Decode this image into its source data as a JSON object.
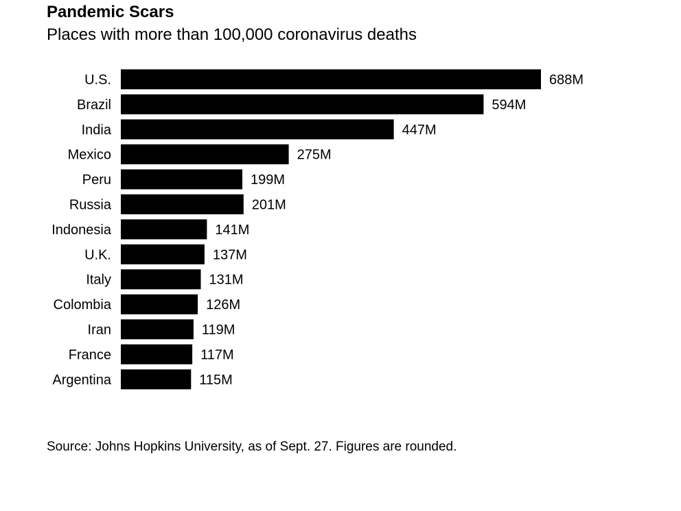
{
  "chart_data": {
    "type": "bar",
    "orientation": "horizontal",
    "title": "Pandemic Scars",
    "subtitle": "Places with more than 100,000 coronavirus deaths",
    "categories": [
      "U.S.",
      "Brazil",
      "India",
      "Mexico",
      "Peru",
      "Russia",
      "Indonesia",
      "U.K.",
      "Italy",
      "Colombia",
      "Iran",
      "France",
      "Argentina"
    ],
    "values": [
      688,
      594,
      447,
      275,
      199,
      201,
      141,
      137,
      131,
      126,
      119,
      117,
      115
    ],
    "data_labels": [
      "688M",
      "594M",
      "447M",
      "275M",
      "199M",
      "201M",
      "141M",
      "137M",
      "131M",
      "126M",
      "119M",
      "117M",
      "115M"
    ],
    "xlim": [
      0,
      688
    ],
    "grid": false,
    "legend": "none",
    "bar_color": "#000000",
    "source": "Source: Johns Hopkins University, as of Sept. 27. Figures are rounded."
  }
}
